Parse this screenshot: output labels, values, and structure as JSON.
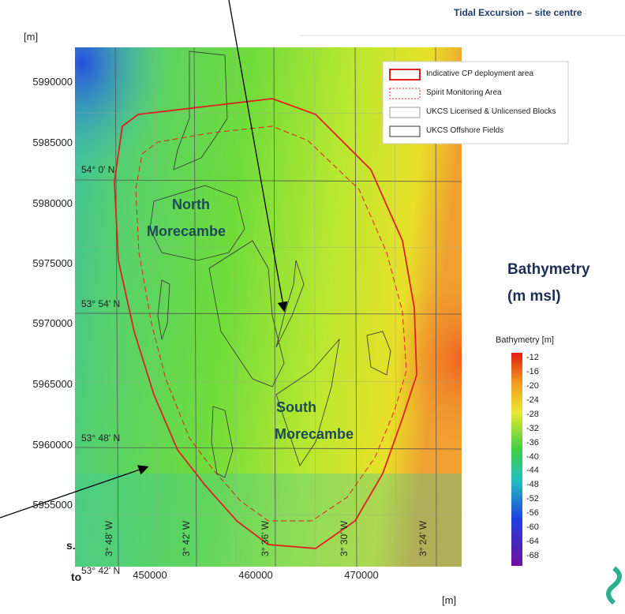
{
  "header": {
    "title": "Tidal Excursion – site centre"
  },
  "map": {
    "y_unit": "[m]",
    "x_unit": "[m]",
    "y_labels": [
      "5990000",
      "5985000",
      "5980000",
      "5975000",
      "5970000",
      "5965000",
      "5960000",
      "5955000"
    ],
    "x_labels": [
      "450000",
      "460000",
      "470000"
    ],
    "lat_labels": [
      "54° 0' N",
      "53° 54' N",
      "53° 48' N",
      "53° 42' N"
    ],
    "lon_labels": [
      "3° 48' W",
      "3° 42' W",
      "3° 36' W",
      "3° 30' W",
      "3° 24' W"
    ],
    "places": [
      {
        "lines": [
          "North",
          "Morecambe"
        ]
      },
      {
        "lines": [
          "South",
          "Morecambe"
        ]
      }
    ],
    "legend": [
      "Indicative CP deployment area",
      "Spirit Monitoring Area",
      "UKCS Licensed & Unlicensed Blocks",
      "UKCS Offshore Fields"
    ]
  },
  "side": {
    "title_lines": [
      "Bathymetry",
      "(m msl)"
    ],
    "colorbar_title": "Bathymetry [m]",
    "colorbar_labels": [
      "-12",
      "-16",
      "-20",
      "-24",
      "-28",
      "-32",
      "-36",
      "-40",
      "-44",
      "-48",
      "-52",
      "-56",
      "-60",
      "-64",
      "-68"
    ]
  },
  "cut_text": [
    "s.",
    "to"
  ]
}
